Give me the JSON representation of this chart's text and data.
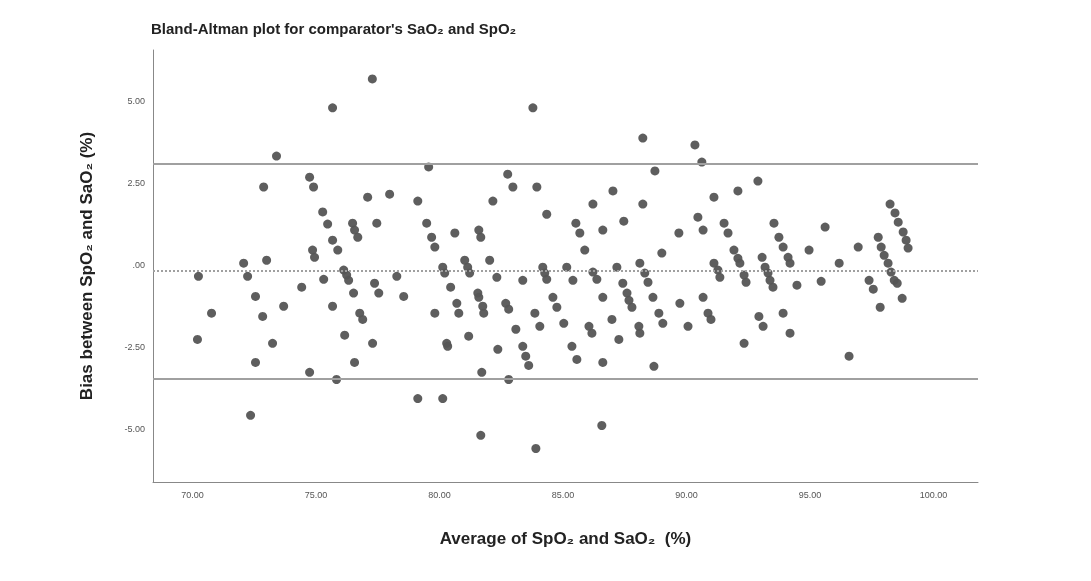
{
  "chart_data": {
    "type": "scatter",
    "title": "Bland-Altman plot for comparator's SaO₂ and SpO₂",
    "xlabel": "Average of SpO₂ and SaO₂  (%)",
    "ylabel": "Bias between SpO₂ and SaO₂ (%)",
    "xlim": [
      68.4,
      101.8
    ],
    "ylim": [
      -6.6,
      6.55
    ],
    "xticks": [
      {
        "value": 70,
        "label": "70.00"
      },
      {
        "value": 75,
        "label": "75.00"
      },
      {
        "value": 80,
        "label": "80.00"
      },
      {
        "value": 85,
        "label": "85.00"
      },
      {
        "value": 90,
        "label": "90.00"
      },
      {
        "value": 95,
        "label": "95.00"
      },
      {
        "value": 100,
        "label": "100.00"
      }
    ],
    "yticks": [
      {
        "value": -5,
        "label": "-5.00"
      },
      {
        "value": -2.5,
        "label": "-2.50"
      },
      {
        "value": 0,
        "label": ".00"
      },
      {
        "value": 2.5,
        "label": "2.50"
      },
      {
        "value": 5,
        "label": "5.00"
      }
    ],
    "grid": false,
    "marker": "circle",
    "ref_lines": [
      {
        "axis": "y",
        "value": 3.1,
        "color": "#a0a0a0",
        "line_style": "solid"
      },
      {
        "axis": "y",
        "value": -0.17,
        "color": "#a0a0a0",
        "line_style": "dotted"
      },
      {
        "axis": "y",
        "value": -3.45,
        "color": "#a0a0a0",
        "line_style": "solid"
      }
    ],
    "series": [
      {
        "color": "#555555",
        "x": [
          77.28,
          75.67,
          73.4,
          72.88,
          74.74,
          74.9,
          77.09,
          77.98,
          79.12,
          75.27,
          75.47,
          76.48,
          76.56,
          76.69,
          77.46,
          75.67,
          75.88,
          74.86,
          74.94,
          72.07,
          73.0,
          70.24,
          72.23,
          76.12,
          76.24,
          76.32,
          75.31,
          74.42,
          77.37,
          77.54,
          78.27,
          72.55,
          78.55,
          76.52,
          73.69,
          75.67,
          70.77,
          72.84,
          76.77,
          76.89,
          70.2,
          76.16,
          73.24,
          77.29,
          72.55,
          76.56,
          74.74,
          75.83,
          79.12,
          72.35,
          79.56,
          79.48,
          83.78,
          88.23,
          88.72,
          82.76,
          82.97,
          83.94,
          87.02,
          82.16,
          86.21,
          88.23,
          84.34,
          87.46,
          85.52,
          85.68,
          86.61,
          80.62,
          81.59,
          81.67,
          79.68,
          79.81,
          85.88,
          89.69,
          89.0,
          82.03,
          81.02,
          81.14,
          81.22,
          80.13,
          80.21,
          84.18,
          84.26,
          84.34,
          85.15,
          85.4,
          86.21,
          86.37,
          87.18,
          88.11,
          88.31,
          88.44,
          82.32,
          83.37,
          80.45,
          87.42,
          87.59,
          87.67,
          87.79,
          81.55,
          81.59,
          81.75,
          81.79,
          80.7,
          80.78,
          82.68,
          82.8,
          84.59,
          84.75,
          86.61,
          88.64,
          79.81,
          83.86,
          88.88,
          89.04,
          89.73,
          90.06,
          86.98,
          85.03,
          84.06,
          86.05,
          86.17,
          88.07,
          88.11,
          83.09,
          81.18,
          87.26,
          80.29,
          80.33,
          82.36,
          83.37,
          83.49,
          83.61,
          85.36,
          85.56,
          86.61,
          88.68,
          81.71,
          82.8,
          80.13,
          86.57,
          81.67,
          83.9,
          90.34,
          90.62,
          92.89,
          92.08,
          91.11,
          90.46,
          90.67,
          91.52,
          91.68,
          93.54,
          93.74,
          93.91,
          94.11,
          94.19,
          95.61,
          94.96,
          96.95,
          96.18,
          98.24,
          98.44,
          98.57,
          98.77,
          98.89,
          98.97,
          97.76,
          97.88,
          98.0,
          98.16,
          98.28,
          98.41,
          98.53,
          91.92,
          92.08,
          92.16,
          93.06,
          93.18,
          93.3,
          93.38,
          93.5,
          91.11,
          91.27,
          91.35,
          92.33,
          92.41,
          94.47,
          95.45,
          97.39,
          97.56,
          98.73,
          97.84,
          90.67,
          90.87,
          90.99,
          92.93,
          93.1,
          93.91,
          94.19,
          92.33,
          96.58
        ],
        "values": [
          5.67,
          4.79,
          3.32,
          2.38,
          2.68,
          2.38,
          2.07,
          2.16,
          1.95,
          1.62,
          1.25,
          1.28,
          1.07,
          0.85,
          1.28,
          0.76,
          0.46,
          0.46,
          0.24,
          0.06,
          0.15,
          -0.34,
          -0.34,
          -0.15,
          -0.3,
          -0.46,
          -0.43,
          -0.67,
          -0.55,
          -0.85,
          -0.34,
          -0.95,
          -0.95,
          -0.85,
          -1.25,
          -1.25,
          -1.46,
          -1.56,
          -1.46,
          -1.65,
          -2.26,
          -2.13,
          -2.38,
          -2.38,
          -2.96,
          -2.96,
          -3.26,
          -3.48,
          -4.06,
          -4.57,
          2.99,
          1.28,
          4.79,
          3.87,
          2.87,
          2.77,
          2.38,
          2.38,
          2.26,
          1.95,
          1.86,
          1.86,
          1.55,
          1.34,
          1.28,
          0.98,
          1.07,
          0.98,
          1.07,
          0.85,
          0.85,
          0.55,
          0.46,
          0.98,
          0.37,
          0.15,
          0.15,
          -0.06,
          -0.24,
          -0.06,
          -0.24,
          -0.06,
          -0.24,
          -0.43,
          -0.06,
          -0.46,
          -0.21,
          -0.43,
          -0.06,
          0.06,
          -0.24,
          -0.52,
          -0.37,
          -0.46,
          -0.67,
          -0.55,
          -0.85,
          -1.07,
          -1.28,
          -0.85,
          -0.98,
          -1.25,
          -1.46,
          -1.16,
          -1.46,
          -1.16,
          -1.34,
          -0.98,
          -1.28,
          -0.98,
          -0.98,
          -1.46,
          -1.46,
          -1.46,
          -1.77,
          -1.16,
          -1.86,
          -1.65,
          -1.77,
          -1.86,
          -1.86,
          -2.07,
          -1.86,
          -2.07,
          -1.95,
          -2.16,
          -2.26,
          -2.38,
          -2.47,
          -2.56,
          -2.47,
          -2.77,
          -3.05,
          -2.47,
          -2.87,
          -2.96,
          -3.08,
          -3.26,
          -3.48,
          -4.06,
          -4.88,
          -5.18,
          -5.58,
          3.66,
          3.14,
          2.56,
          2.26,
          2.07,
          1.46,
          1.07,
          1.28,
          0.98,
          1.28,
          0.85,
          0.55,
          0.24,
          0.06,
          1.16,
          0.46,
          0.55,
          0.06,
          1.86,
          1.59,
          1.31,
          1.01,
          0.76,
          0.52,
          0.85,
          0.55,
          0.3,
          0.06,
          -0.21,
          -0.46,
          -0.55,
          0.46,
          0.21,
          0.06,
          0.24,
          -0.06,
          -0.24,
          -0.46,
          -0.67,
          0.06,
          -0.15,
          -0.37,
          -0.3,
          -0.52,
          -0.61,
          -0.49,
          -0.46,
          -0.73,
          -1.01,
          -1.28,
          -0.98,
          -1.46,
          -1.65,
          -1.56,
          -1.86,
          -1.46,
          -2.07,
          -2.38,
          -2.77
        ]
      }
    ]
  }
}
